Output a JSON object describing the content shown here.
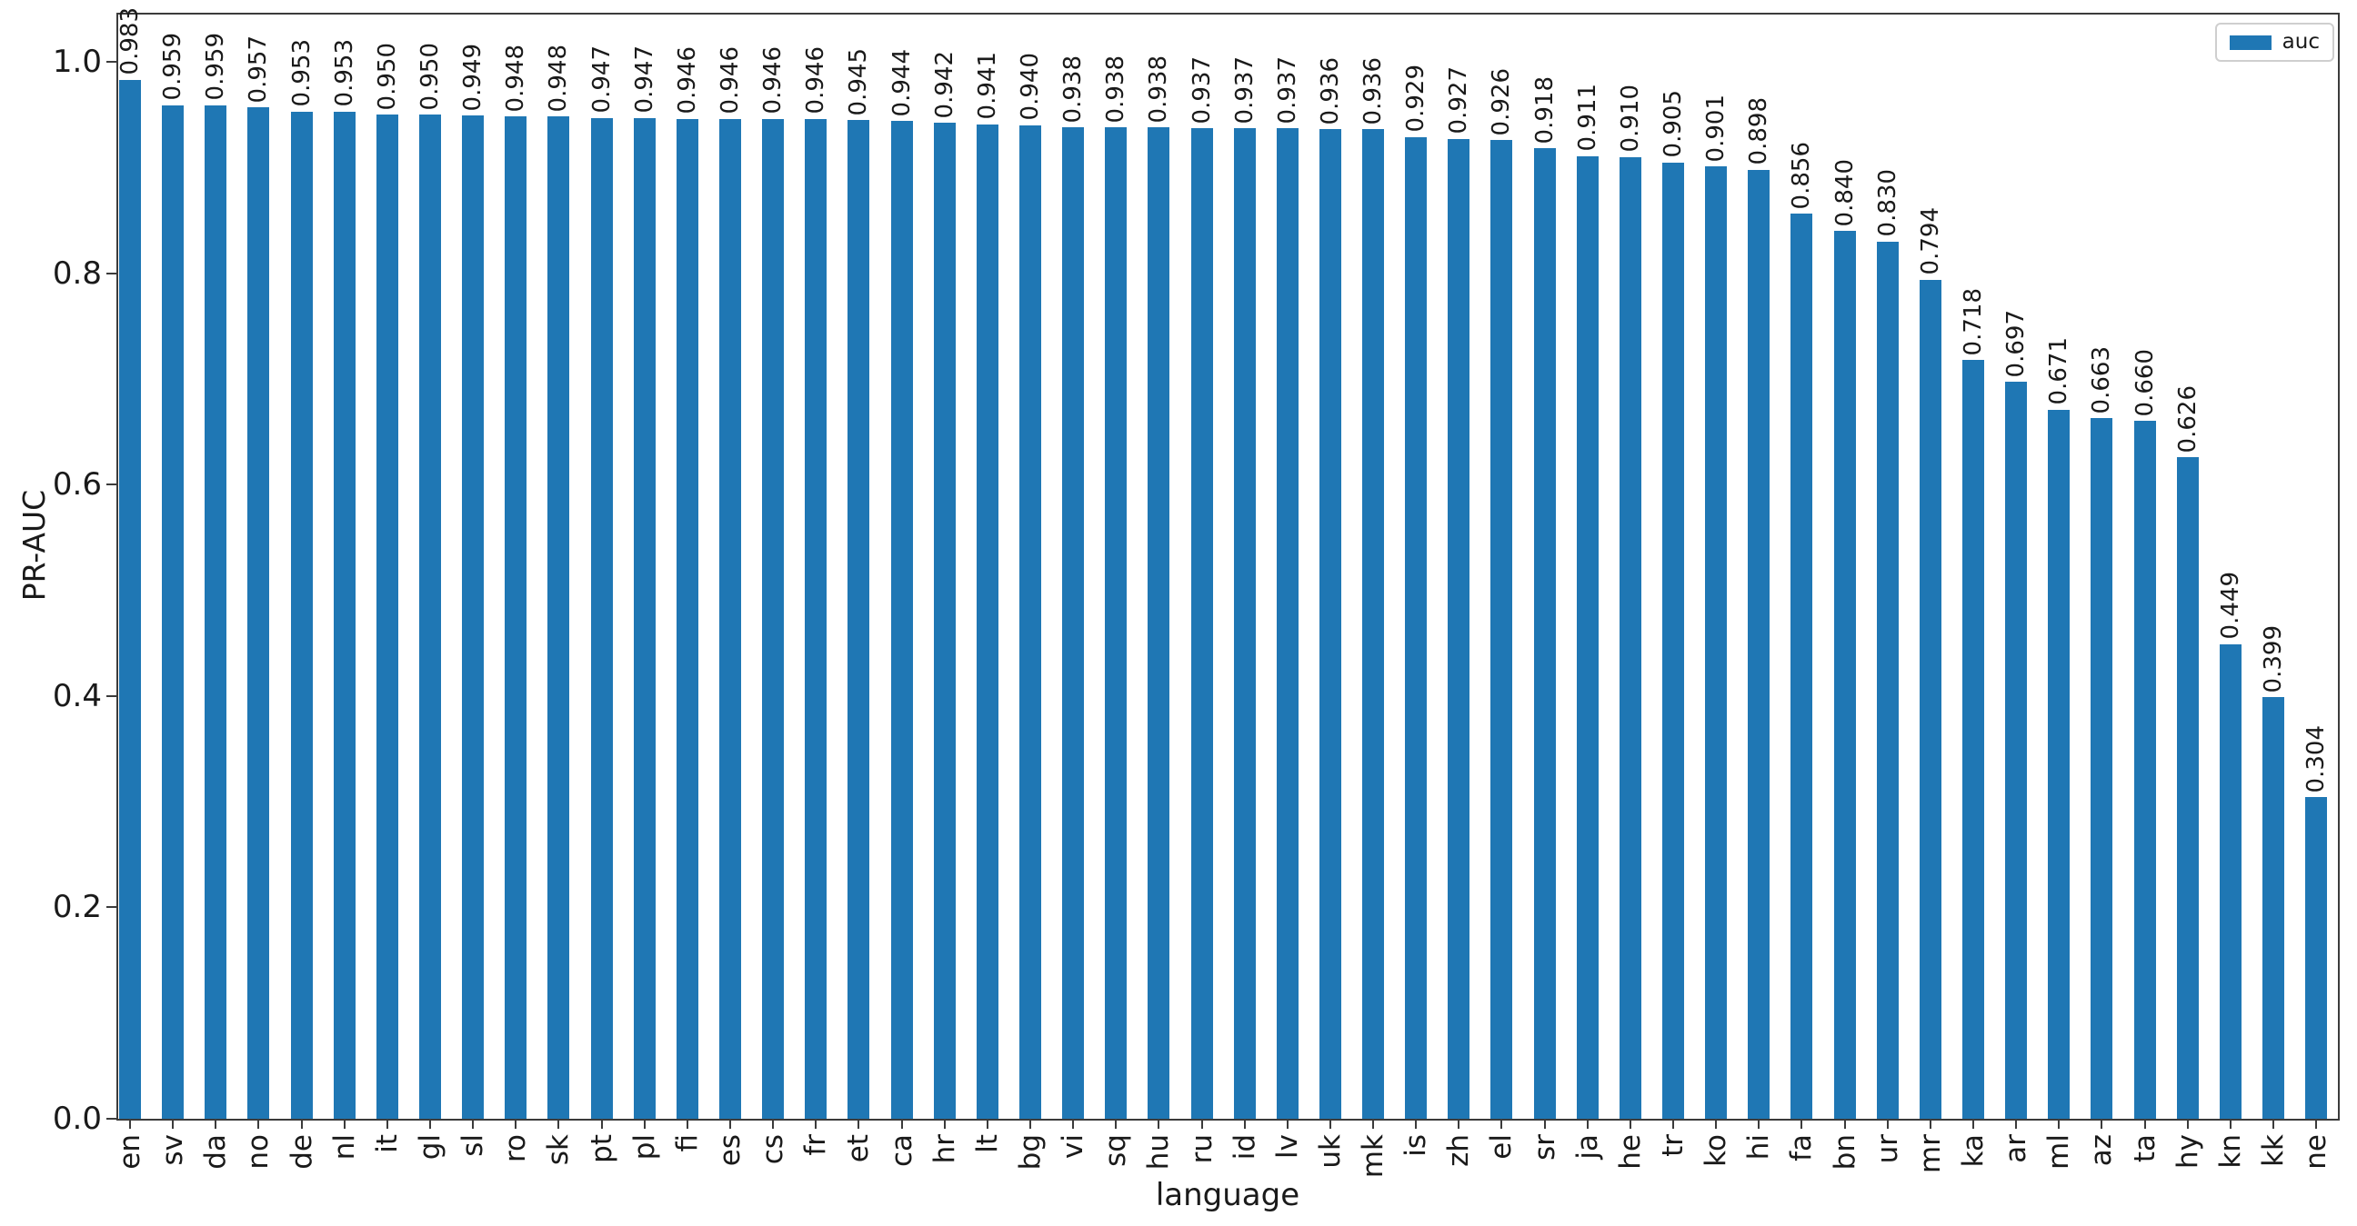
{
  "chart_data": {
    "type": "bar",
    "title": "",
    "xlabel": "language",
    "ylabel": "PR-AUC",
    "ylim": [
      0.0,
      1.05
    ],
    "yticks": [
      0.0,
      0.2,
      0.4,
      0.6,
      0.8,
      1.0
    ],
    "grid": false,
    "legend": {
      "entries": [
        "auc"
      ],
      "position": "upper right"
    },
    "bar_color": "#1f77b4",
    "value_label_decimals": 3,
    "categories": [
      "en",
      "sv",
      "da",
      "no",
      "de",
      "nl",
      "it",
      "gl",
      "sl",
      "ro",
      "sk",
      "pt",
      "pl",
      "fi",
      "es",
      "cs",
      "fr",
      "et",
      "ca",
      "hr",
      "lt",
      "bg",
      "vi",
      "sq",
      "hu",
      "ru",
      "id",
      "lv",
      "uk",
      "mk",
      "is",
      "zh",
      "el",
      "sr",
      "ja",
      "he",
      "tr",
      "ko",
      "hi",
      "fa",
      "bn",
      "ur",
      "mr",
      "ka",
      "ar",
      "ml",
      "az",
      "ta",
      "hy",
      "kn",
      "kk",
      "ne"
    ],
    "values": [
      0.983,
      0.959,
      0.959,
      0.957,
      0.953,
      0.953,
      0.95,
      0.95,
      0.949,
      0.948,
      0.948,
      0.947,
      0.947,
      0.946,
      0.946,
      0.946,
      0.946,
      0.945,
      0.944,
      0.942,
      0.941,
      0.94,
      0.938,
      0.938,
      0.938,
      0.937,
      0.937,
      0.937,
      0.936,
      0.936,
      0.929,
      0.927,
      0.926,
      0.918,
      0.911,
      0.91,
      0.905,
      0.901,
      0.898,
      0.856,
      0.84,
      0.83,
      0.794,
      0.718,
      0.697,
      0.671,
      0.663,
      0.66,
      0.626,
      0.449,
      0.399,
      0.304
    ]
  }
}
